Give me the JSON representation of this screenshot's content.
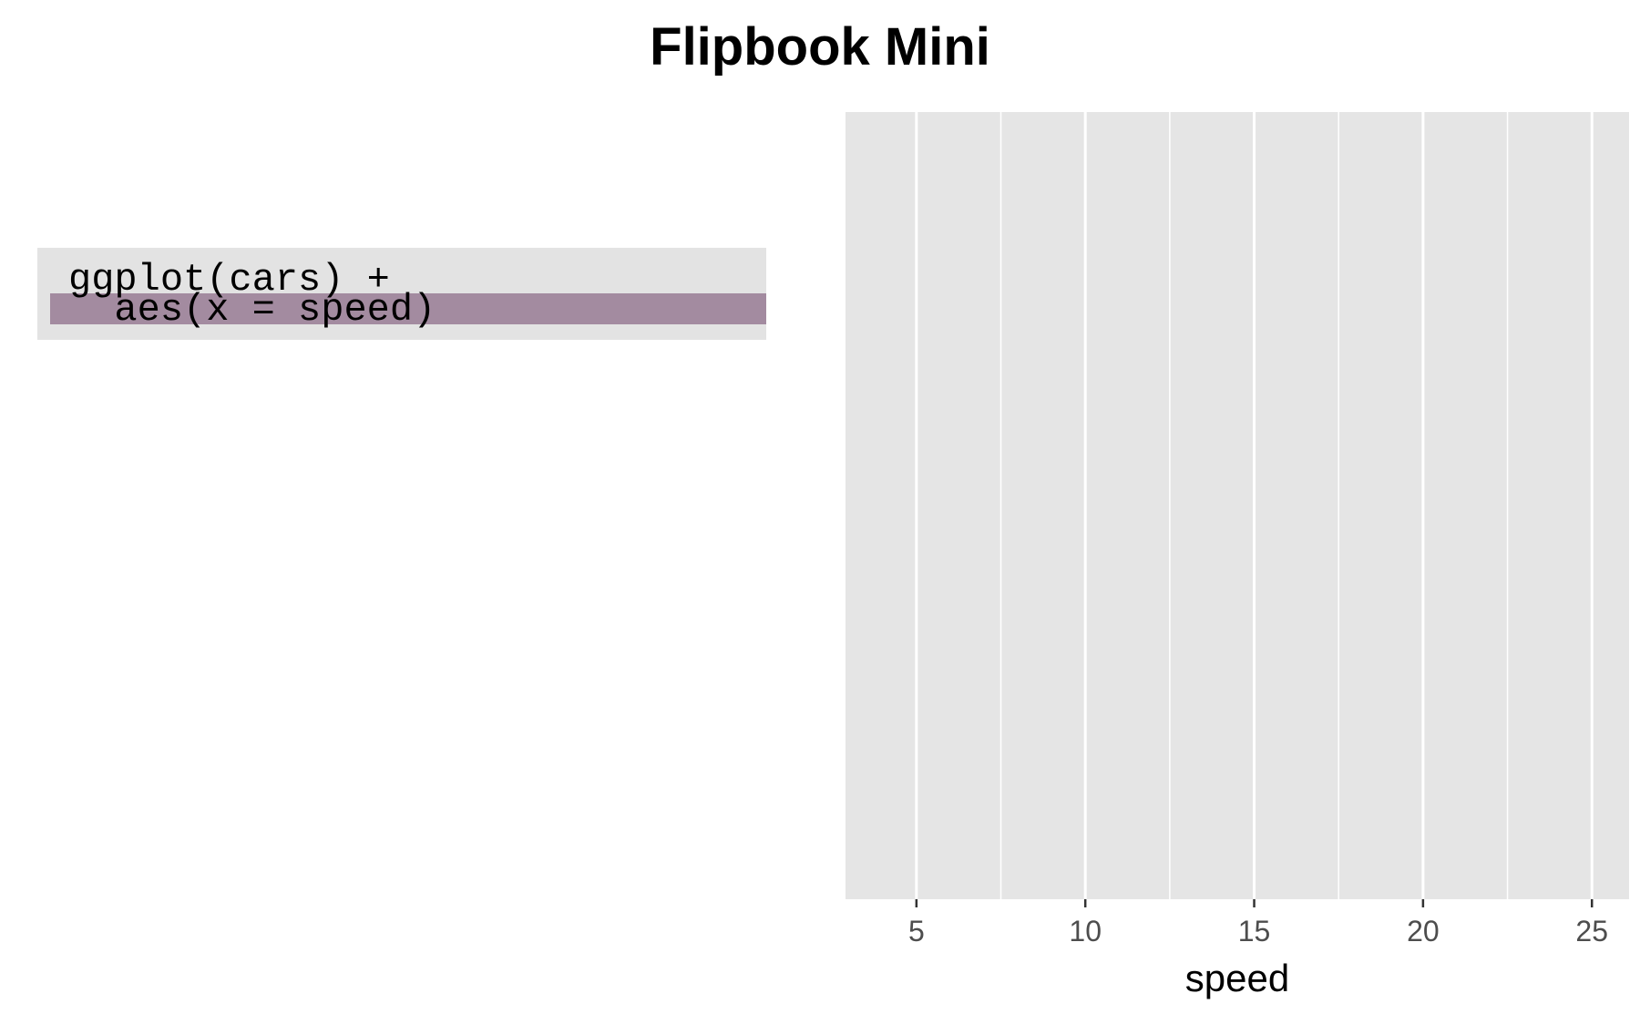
{
  "header": {
    "title": "Flipbook Mini"
  },
  "code": {
    "lines": [
      "ggplot(cars) +",
      "  aes(x = speed)"
    ],
    "highlighted_line": 2,
    "highlight_color": "#a38ba0",
    "panel_color": "#e3e3e3"
  },
  "chart_data": {
    "type": "scatter",
    "title": "",
    "xlabel": "speed",
    "ylabel": "",
    "xlim": [
      2.9,
      26.1
    ],
    "x_ticks": [
      5,
      10,
      15,
      20,
      25
    ],
    "x_tick_labels": [
      "5",
      "10",
      "15",
      "20",
      "25"
    ],
    "x_minor_gridlines": [
      7.5,
      12.5,
      17.5,
      22.5
    ],
    "series": [],
    "grid": true,
    "panel_background": "#e5e5e5",
    "gridline_color": "#ffffff"
  }
}
